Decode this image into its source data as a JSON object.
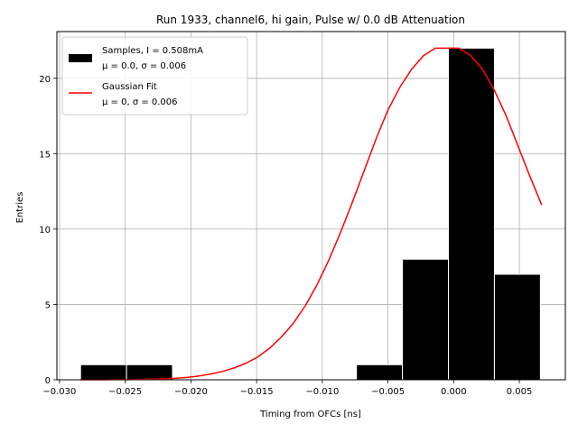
{
  "chart_data": {
    "type": "bar",
    "title": "Run 1933, channel6, hi gain, Pulse w/ 0.0 dB Attenuation",
    "xlabel": "Timing from OFCs [ns]",
    "ylabel": "Entries",
    "xlim": [
      -0.0302,
      0.0085
    ],
    "ylim": [
      0,
      23.1
    ],
    "grid": true,
    "x_ticks": [
      -0.03,
      -0.025,
      -0.02,
      -0.015,
      -0.01,
      -0.005,
      0.0,
      0.005
    ],
    "x_tick_labels": [
      "−0.030",
      "−0.025",
      "−0.020",
      "−0.015",
      "−0.010",
      "−0.005",
      "0.000",
      "0.005"
    ],
    "y_ticks": [
      0,
      5,
      10,
      15,
      20
    ],
    "y_tick_labels": [
      "0",
      "5",
      "10",
      "15",
      "20"
    ],
    "histogram": {
      "name": "Samples, I = 0.508mA",
      "stats": "μ = 0.0, σ = 0.006",
      "color": "#000000",
      "edge_color": "#ffffff",
      "bins": [
        {
          "x0": -0.0284,
          "x1": -0.0249,
          "count": 1
        },
        {
          "x0": -0.0249,
          "x1": -0.0214,
          "count": 1
        },
        {
          "x0": -0.0214,
          "x1": -0.0179,
          "count": 0
        },
        {
          "x0": -0.0179,
          "x1": -0.0144,
          "count": 0
        },
        {
          "x0": -0.0144,
          "x1": -0.0109,
          "count": 0
        },
        {
          "x0": -0.0109,
          "x1": -0.0074,
          "count": 0
        },
        {
          "x0": -0.0074,
          "x1": -0.0039,
          "count": 1
        },
        {
          "x0": -0.0039,
          "x1": -0.0004,
          "count": 8
        },
        {
          "x0": -0.0004,
          "x1": 0.0031,
          "count": 22
        },
        {
          "x0": 0.0031,
          "x1": 0.0066,
          "count": 7
        }
      ]
    },
    "fit": {
      "name": "Gaussian Fit",
      "stats": "μ = 0, σ = 0.006",
      "color": "#ff0000",
      "x": [
        -0.0284,
        -0.0275,
        -0.0266,
        -0.0257,
        -0.0248,
        -0.0239,
        -0.023,
        -0.0221,
        -0.0212,
        -0.0203,
        -0.0194,
        -0.0185,
        -0.0176,
        -0.0167,
        -0.0158,
        -0.0149,
        -0.014,
        -0.0131,
        -0.0122,
        -0.0113,
        -0.0104,
        -0.0095,
        -0.0086,
        -0.0077,
        -0.0068,
        -0.0059,
        -0.005,
        -0.0041,
        -0.0032,
        -0.0023,
        -0.0014,
        -0.0005,
        0.0004,
        0.0013,
        0.0022,
        0.0031,
        0.004,
        0.0049,
        0.0058,
        0.0067
      ],
      "y": [
        0.0,
        0.0,
        0.0,
        0.01,
        0.01,
        0.02,
        0.04,
        0.06,
        0.1,
        0.16,
        0.25,
        0.38,
        0.55,
        0.79,
        1.1,
        1.52,
        2.1,
        2.85,
        3.75,
        4.9,
        6.3,
        7.95,
        9.8,
        11.8,
        13.9,
        16.0,
        17.9,
        19.4,
        20.6,
        21.5,
        22.0,
        22.0,
        22.0,
        21.5,
        20.6,
        19.2,
        17.5,
        15.5,
        13.5,
        11.6
      ]
    }
  }
}
